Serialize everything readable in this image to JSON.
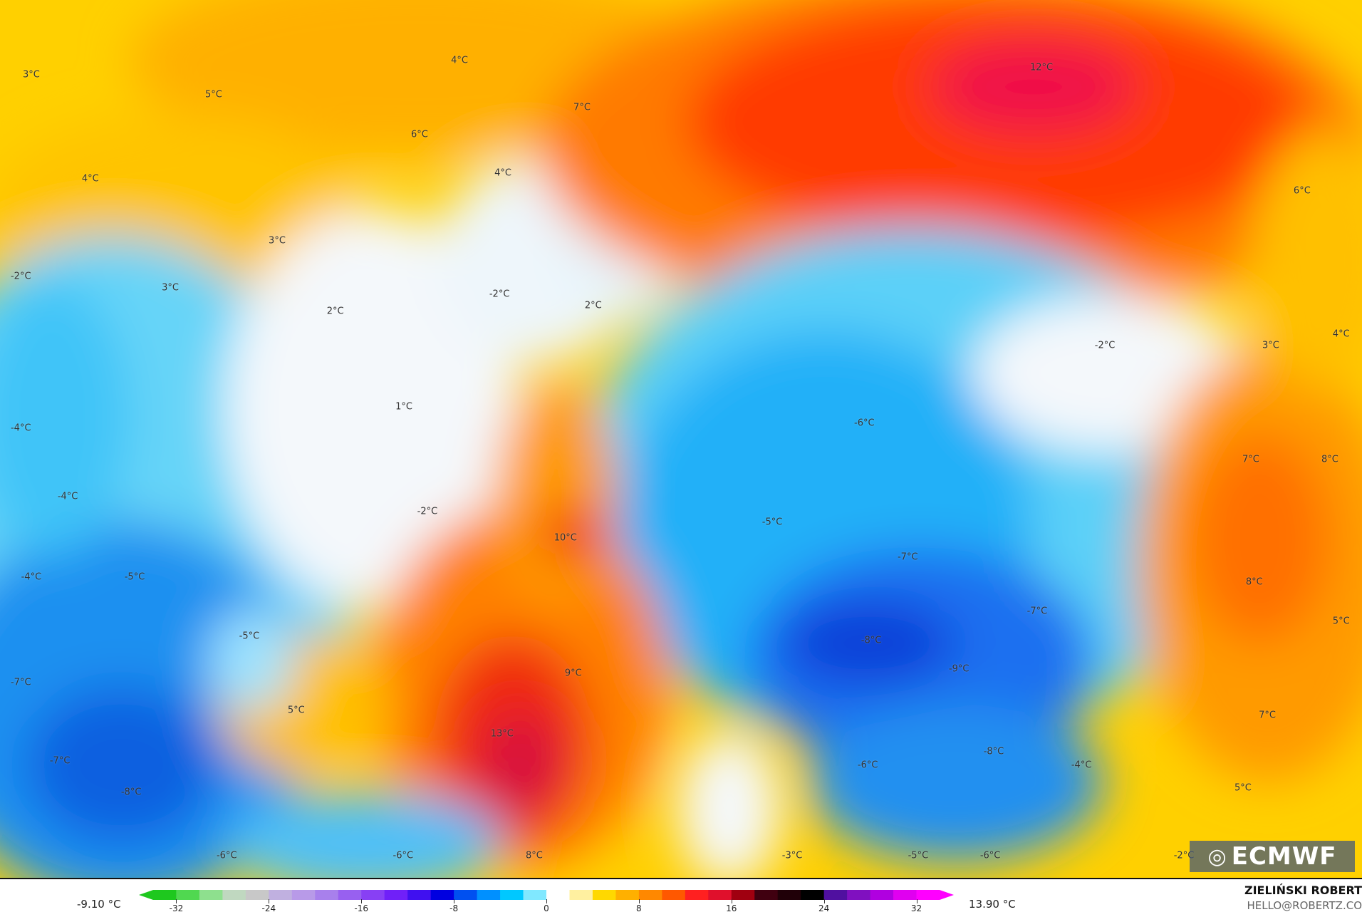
{
  "map": {
    "labels": [
      "3°C",
      "5°C",
      "4°C",
      "7°C",
      "6°C",
      "12°C",
      "4°C",
      "4°C",
      "6°C",
      "3°C",
      "-2°C",
      "3°C",
      "-2°C",
      "2°C",
      "2°C",
      "-2°C",
      "3°C",
      "4°C",
      "1°C",
      "-4°C",
      "-6°C",
      "7°C",
      "8°C",
      "-4°C",
      "-2°C",
      "-5°C",
      "10°C",
      "-7°C",
      "-4°C",
      "-5°C",
      "8°C",
      "-7°C",
      "5°C",
      "-5°C",
      "-8°C",
      "9°C",
      "-9°C",
      "-7°C",
      "5°C",
      "7°C",
      "13°C",
      "-8°C",
      "-7°C",
      "-6°C",
      "-4°C",
      "-8°C",
      "5°C",
      "-6°C",
      "-6°C",
      "8°C",
      "-3°C",
      "-5°C",
      "-6°C",
      "-2°C"
    ],
    "logo_text": "ECMWF"
  },
  "legend": {
    "min_label": "-9.10 °C",
    "max_label": "13.90 °C",
    "ticks": [
      "-32",
      "-24",
      "-16",
      "-8",
      "0",
      "8",
      "16",
      "24",
      "32"
    ],
    "colors": [
      "#1ec81e",
      "#50d850",
      "#8ee08e",
      "#c0d8c0",
      "#c8c8c8",
      "#c0b0e0",
      "#b89ae8",
      "#a880ec",
      "#9860f0",
      "#8840f4",
      "#7020f8",
      "#4010f0",
      "#0000e0",
      "#0050f0",
      "#0090ff",
      "#00c8ff",
      "#80e8ff",
      "#ffffff",
      "#fff0a0",
      "#ffd800",
      "#ffb000",
      "#ff8800",
      "#ff5800",
      "#ff2020",
      "#e0102c",
      "#a00010",
      "#400010",
      "#200008",
      "#000000",
      "#5010a0",
      "#8010c0",
      "#b000e0",
      "#e000f0",
      "#ff00ff"
    ]
  },
  "credit": {
    "author": "ZIELIŃSKI ROBERT",
    "email": "HELLO@ROBERTZ.CO"
  }
}
